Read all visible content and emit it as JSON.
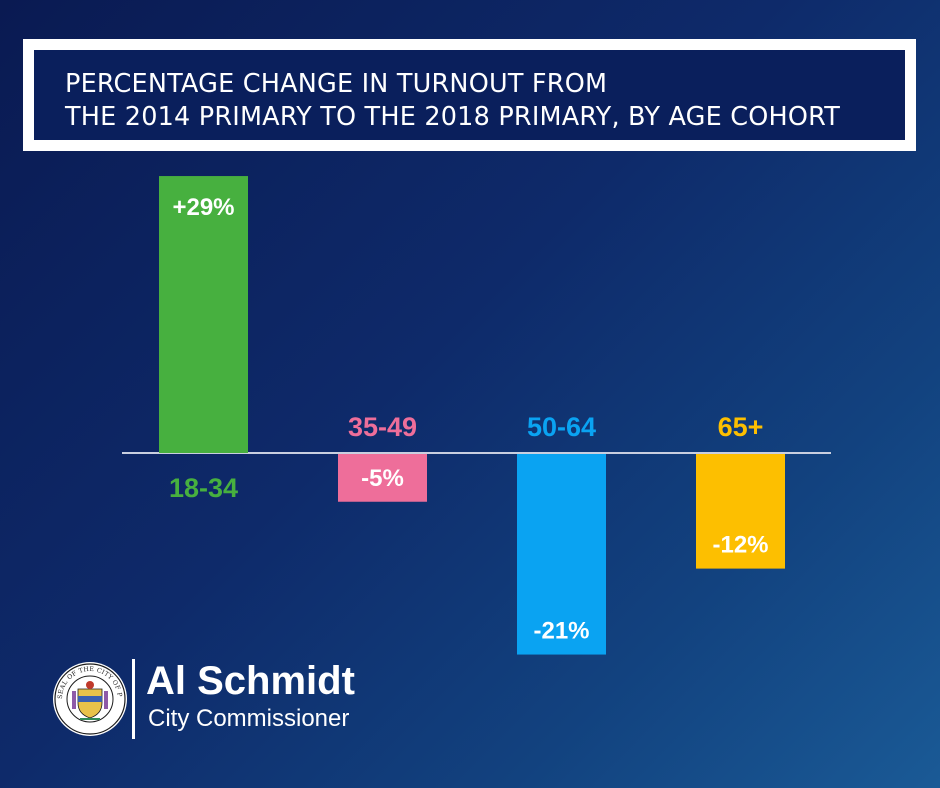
{
  "title": {
    "line1": "PERCENTAGE CHANGE IN TURNOUT FROM",
    "line2": "THE 2014 PRIMARY TO THE 2018 PRIMARY, BY AGE COHORT"
  },
  "chart_data": {
    "type": "bar",
    "title": "PERCENTAGE CHANGE IN TURNOUT FROM THE 2014 PRIMARY TO THE 2018 PRIMARY, BY AGE COHORT",
    "xlabel": "",
    "ylabel": "",
    "categories": [
      "18-34",
      "35-49",
      "50-64",
      "65+"
    ],
    "values": [
      29,
      -5,
      -21,
      -12
    ],
    "value_labels": [
      "+29%",
      "-5%",
      "-21%",
      "-12%"
    ],
    "colors": [
      "#47b03f",
      "#ee6e9a",
      "#0aa3f2",
      "#fdbf00"
    ],
    "ylim": [
      -21,
      29
    ],
    "grid": false,
    "legend": "none"
  },
  "footer": {
    "seal_text": "SEAL OF THE CITY OF PHILADELPHIA",
    "name": "Al Schmidt",
    "role": "City Commissioner"
  }
}
